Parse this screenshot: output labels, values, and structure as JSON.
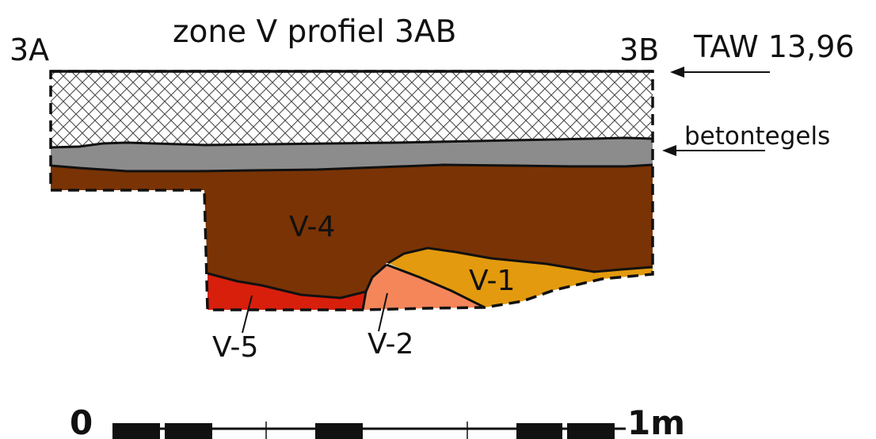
{
  "title": "zone V profiel 3AB",
  "end_labels": {
    "left": "3A",
    "right": "3B"
  },
  "annotations": {
    "taw": "TAW 13,96",
    "betontegels": "betontegels"
  },
  "layers": {
    "v4": "V-4",
    "v1": "V-1",
    "v2": "V-2",
    "v5": "V-5"
  },
  "scale_bar": {
    "start": "0",
    "end": "1m"
  },
  "colors": {
    "hatch_stroke": "#4a4a4a",
    "concrete": "#8c8c8c",
    "v4": "#7a3304",
    "v1": "#e39a0e",
    "v2": "#f4865a",
    "v5": "#d71f0c",
    "outline": "#111111"
  }
}
